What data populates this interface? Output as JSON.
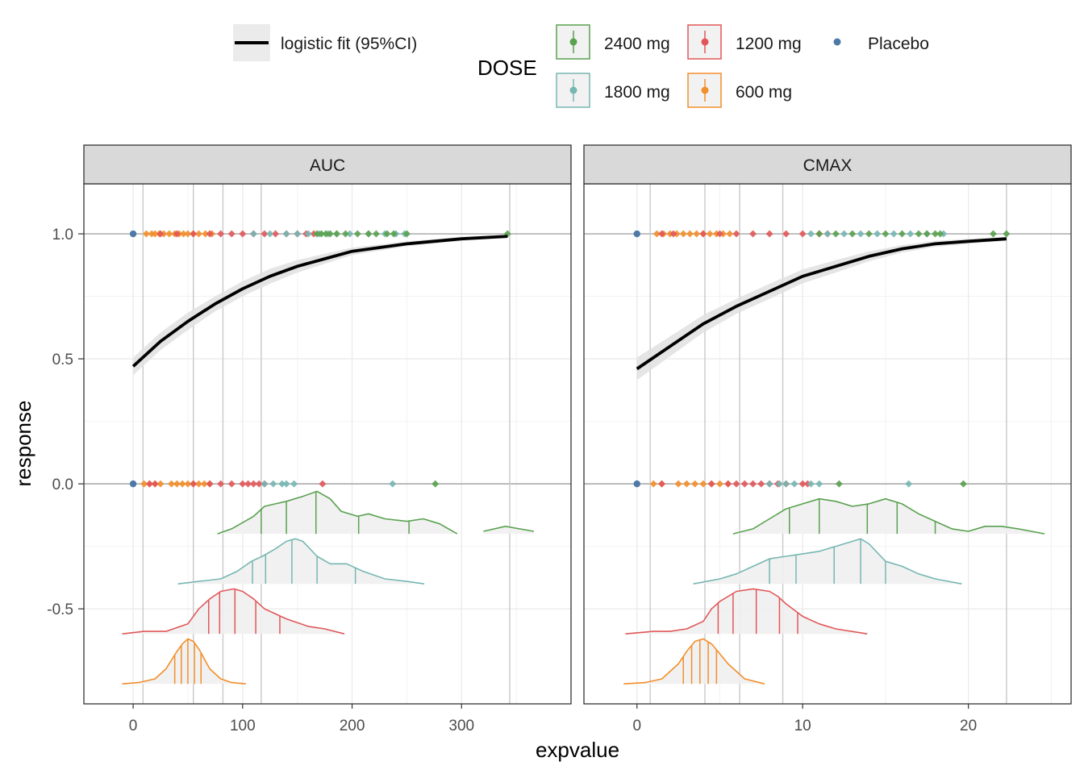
{
  "chart_data": {
    "type": "scatter",
    "xlabel": "expvalue",
    "ylabel": "response",
    "y_ticks": [
      1.0,
      0.5,
      0.0,
      -0.5
    ],
    "y_tick_labels": [
      "1.0",
      "0.5",
      "0.0",
      "-0.5"
    ],
    "ylim": [
      -0.88,
      1.2
    ],
    "grid": true,
    "legend_position": "top",
    "legend": {
      "fit_label": "logistic fit (95%CI)",
      "dose_title": "DOSE",
      "doses": [
        {
          "name": "2400 mg",
          "color": "#59A14F"
        },
        {
          "name": "1800 mg",
          "color": "#76B7B2"
        },
        {
          "name": "1200 mg",
          "color": "#E15759"
        },
        {
          "name": "600 mg",
          "color": "#F28E2B"
        },
        {
          "name": "Placebo",
          "color": "#4E79A7"
        }
      ]
    },
    "panels": [
      {
        "name": "AUC",
        "xlim": [
          -45,
          400
        ],
        "x_ticks": [
          0,
          100,
          200,
          300
        ],
        "x_tick_labels": [
          "0",
          "100",
          "200",
          "300"
        ],
        "quantile_lines": [
          9,
          55,
          82,
          117,
          344
        ],
        "fit_curve": [
          [
            0,
            0.47
          ],
          [
            25,
            0.57
          ],
          [
            50,
            0.65
          ],
          [
            75,
            0.72
          ],
          [
            100,
            0.78
          ],
          [
            125,
            0.83
          ],
          [
            150,
            0.87
          ],
          [
            175,
            0.9
          ],
          [
            200,
            0.93
          ],
          [
            250,
            0.96
          ],
          [
            300,
            0.98
          ],
          [
            342,
            0.99
          ]
        ],
        "ci_halfwidth": [
          0.035,
          0.035,
          0.035,
          0.03,
          0.03,
          0.03,
          0.025,
          0.02,
          0.015,
          0.01,
          0.008,
          0.006
        ],
        "points": [
          {
            "dose": "Placebo",
            "response": 1,
            "x": [
              0
            ]
          },
          {
            "dose": "600 mg",
            "response": 1,
            "x": [
              12,
              17,
              20,
              24,
              28,
              33,
              38,
              42,
              46,
              50,
              55,
              60,
              66,
              72
            ]
          },
          {
            "dose": "1200 mg",
            "response": 1,
            "x": [
              25,
              40,
              55,
              70,
              80,
              90,
              100,
              110,
              120,
              130,
              140,
              150,
              158,
              165
            ]
          },
          {
            "dose": "1800 mg",
            "response": 1,
            "x": [
              110,
              125,
              140,
              150,
              160,
              170,
              178,
              186,
              198,
              215,
              230,
              240,
              248
            ]
          },
          {
            "dose": "2400 mg",
            "response": 1,
            "x": [
              168,
              172,
              176,
              180,
              186,
              194,
              205,
              215,
              222,
              232,
              238,
              250,
              342
            ]
          },
          {
            "dose": "Placebo",
            "response": 0,
            "x": [
              0
            ]
          },
          {
            "dose": "600 mg",
            "response": 0,
            "x": [
              10,
              15,
              20,
              25,
              35,
              40,
              45,
              50,
              55,
              60,
              65,
              70
            ]
          },
          {
            "dose": "1200 mg",
            "response": 0,
            "x": [
              15,
              20,
              55,
              70,
              80,
              90,
              100,
              105,
              110,
              115,
              120,
              173
            ]
          },
          {
            "dose": "1800 mg",
            "response": 0,
            "x": [
              120,
              128,
              136,
              140,
              147,
              237
            ]
          },
          {
            "dose": "2400 mg",
            "response": 0,
            "x": [
              276
            ]
          }
        ],
        "densities": [
          {
            "dose": "2400 mg",
            "baseline": -0.2,
            "x": [
              77,
              90,
              110,
              120,
              130,
              140,
              155,
              168,
              180,
              190,
              205,
              215,
              230,
              250,
              265,
              280,
              296,
              306,
              320,
              340,
              366
            ],
            "y": [
              0,
              0.02,
              0.07,
              0.11,
              0.12,
              0.13,
              0.15,
              0.17,
              0.14,
              0.09,
              0.07,
              0.08,
              0.06,
              0.05,
              0.06,
              0.04,
              0,
              null,
              0.01,
              0.03,
              0.01
            ],
            "quantiles": [
              117,
              140,
              167,
              206,
              252
            ]
          },
          {
            "dose": "1800 mg",
            "baseline": -0.4,
            "x": [
              41,
              60,
              80,
              95,
              108,
              118,
              130,
              140,
              148,
              155,
              168,
              180,
              195,
              210,
              230,
              250,
              266
            ],
            "y": [
              0,
              0.01,
              0.02,
              0.05,
              0.09,
              0.11,
              0.14,
              0.17,
              0.18,
              0.17,
              0.11,
              0.08,
              0.08,
              0.05,
              0.02,
              0.01,
              0
            ],
            "quantiles": [
              109,
              121,
              145,
              168,
              203
            ]
          },
          {
            "dose": "1200 mg",
            "baseline": -0.6,
            "x": [
              -10,
              10,
              30,
              50,
              60,
              70,
              80,
              92,
              100,
              110,
              120,
              130,
              140,
              160,
              175,
              193
            ],
            "y": [
              0,
              0.01,
              0.01,
              0.04,
              0.1,
              0.14,
              0.17,
              0.18,
              0.17,
              0.14,
              0.1,
              0.08,
              0.06,
              0.03,
              0.02,
              0
            ],
            "quantiles": [
              69,
              79,
              93,
              112,
              134
            ]
          },
          {
            "dose": "600 mg",
            "baseline": -0.8,
            "x": [
              -10,
              5,
              20,
              30,
              40,
              45,
              50,
              55,
              60,
              70,
              80,
              90,
              103
            ],
            "y": [
              0,
              0.005,
              0.02,
              0.06,
              0.13,
              0.16,
              0.18,
              0.17,
              0.14,
              0.06,
              0.02,
              0.005,
              0
            ],
            "quantiles": [
              38,
              44,
              50,
              56,
              62
            ]
          }
        ]
      },
      {
        "name": "CMAX",
        "xlim": [
          -3.2,
          26.2
        ],
        "x_ticks": [
          0,
          10,
          20
        ],
        "x_tick_labels": [
          "0",
          "10",
          "20"
        ],
        "quantile_lines": [
          0.8,
          4.1,
          6.2,
          8.8,
          22.3
        ],
        "fit_curve": [
          [
            0,
            0.46
          ],
          [
            2,
            0.55
          ],
          [
            4,
            0.64
          ],
          [
            6,
            0.71
          ],
          [
            8,
            0.77
          ],
          [
            10,
            0.83
          ],
          [
            12,
            0.87
          ],
          [
            14,
            0.91
          ],
          [
            16,
            0.94
          ],
          [
            18,
            0.96
          ],
          [
            20,
            0.97
          ],
          [
            22.3,
            0.98
          ]
        ],
        "ci_halfwidth": [
          0.045,
          0.04,
          0.035,
          0.03,
          0.03,
          0.028,
          0.025,
          0.02,
          0.015,
          0.012,
          0.01,
          0.008
        ],
        "points": [
          {
            "dose": "Placebo",
            "response": 1,
            "x": [
              0
            ]
          },
          {
            "dose": "600 mg",
            "response": 1,
            "x": [
              1.2,
              1.6,
              2.0,
              2.4,
              2.8,
              3.2,
              3.6,
              4.0,
              4.4,
              4.8,
              5.2,
              5.6
            ]
          },
          {
            "dose": "1200 mg",
            "response": 1,
            "x": [
              1.5,
              2.2,
              4.0,
              5.0,
              6.0,
              7.0,
              8.0,
              9.0,
              10.0,
              11.0,
              11.5
            ]
          },
          {
            "dose": "1800 mg",
            "response": 1,
            "x": [
              10.5,
              11.5,
              12.5,
              13.5,
              14.5,
              15.5,
              16.5,
              17.5,
              18.5
            ]
          },
          {
            "dose": "2400 mg",
            "response": 1,
            "x": [
              11,
              12,
              13,
              14,
              15,
              16,
              17,
              17.5,
              18,
              18.3,
              21.5,
              22.3
            ]
          },
          {
            "dose": "Placebo",
            "response": 0,
            "x": [
              0
            ]
          },
          {
            "dose": "600 mg",
            "response": 0,
            "x": [
              1.0,
              1.5,
              2.5,
              3.0,
              3.5,
              4.0,
              4.5,
              5.0,
              5.5
            ]
          },
          {
            "dose": "1200 mg",
            "response": 0,
            "x": [
              1.5,
              4.5,
              5.5,
              6.0,
              6.5,
              7.0,
              7.5,
              8.0,
              8.5,
              9.0,
              10.0,
              10.3
            ]
          },
          {
            "dose": "1800 mg",
            "response": 0,
            "x": [
              8.0,
              8.6,
              9.0,
              9.5,
              10.5,
              11.0,
              16.4
            ]
          },
          {
            "dose": "2400 mg",
            "response": 0,
            "x": [
              12.2,
              19.7
            ]
          }
        ],
        "densities": [
          {
            "dose": "2400 mg",
            "baseline": -0.2,
            "x": [
              5.8,
              7,
              8,
              9,
              10,
              11,
              12,
              13,
              14,
              15,
              16,
              17,
              18,
              19,
              20,
              21,
              22,
              23,
              24.6
            ],
            "y": [
              0,
              0.02,
              0.06,
              0.1,
              0.12,
              0.14,
              0.13,
              0.11,
              0.12,
              0.14,
              0.12,
              0.08,
              0.05,
              0.02,
              0.01,
              0.03,
              0.03,
              0.02,
              0
            ],
            "quantiles": [
              9.2,
              11,
              13.9,
              15.7,
              18
            ]
          },
          {
            "dose": "1800 mg",
            "baseline": -0.4,
            "x": [
              3.4,
              5,
              6,
              7,
              8,
              9,
              10,
              11,
              12,
              13,
              13.5,
              14,
              15,
              16,
              17,
              18,
              19.6
            ],
            "y": [
              0,
              0.02,
              0.04,
              0.07,
              0.1,
              0.11,
              0.12,
              0.13,
              0.15,
              0.17,
              0.18,
              0.16,
              0.09,
              0.07,
              0.04,
              0.02,
              0
            ],
            "quantiles": [
              8,
              9.6,
              11.9,
              13.5,
              15
            ]
          },
          {
            "dose": "1200 mg",
            "baseline": -0.6,
            "x": [
              -0.7,
              1,
              2,
              3,
              4,
              4.5,
              5,
              6,
              7,
              8,
              8.5,
              9,
              10,
              11,
              12,
              13.9
            ],
            "y": [
              0,
              0.01,
              0.01,
              0.02,
              0.05,
              0.1,
              0.13,
              0.17,
              0.18,
              0.17,
              0.15,
              0.12,
              0.07,
              0.04,
              0.02,
              0
            ],
            "quantiles": [
              4.9,
              5.8,
              7.2,
              8.6,
              9.7
            ]
          },
          {
            "dose": "600 mg",
            "baseline": -0.8,
            "x": [
              -0.8,
              0.5,
              1.5,
              2.5,
              3,
              3.5,
              4,
              4.5,
              5,
              5.5,
              6.5,
              7.7
            ],
            "y": [
              0,
              0.005,
              0.02,
              0.08,
              0.13,
              0.17,
              0.18,
              0.16,
              0.12,
              0.08,
              0.02,
              0
            ],
            "quantiles": [
              2.8,
              3.3,
              3.8,
              4.3,
              4.8
            ]
          }
        ]
      }
    ]
  }
}
